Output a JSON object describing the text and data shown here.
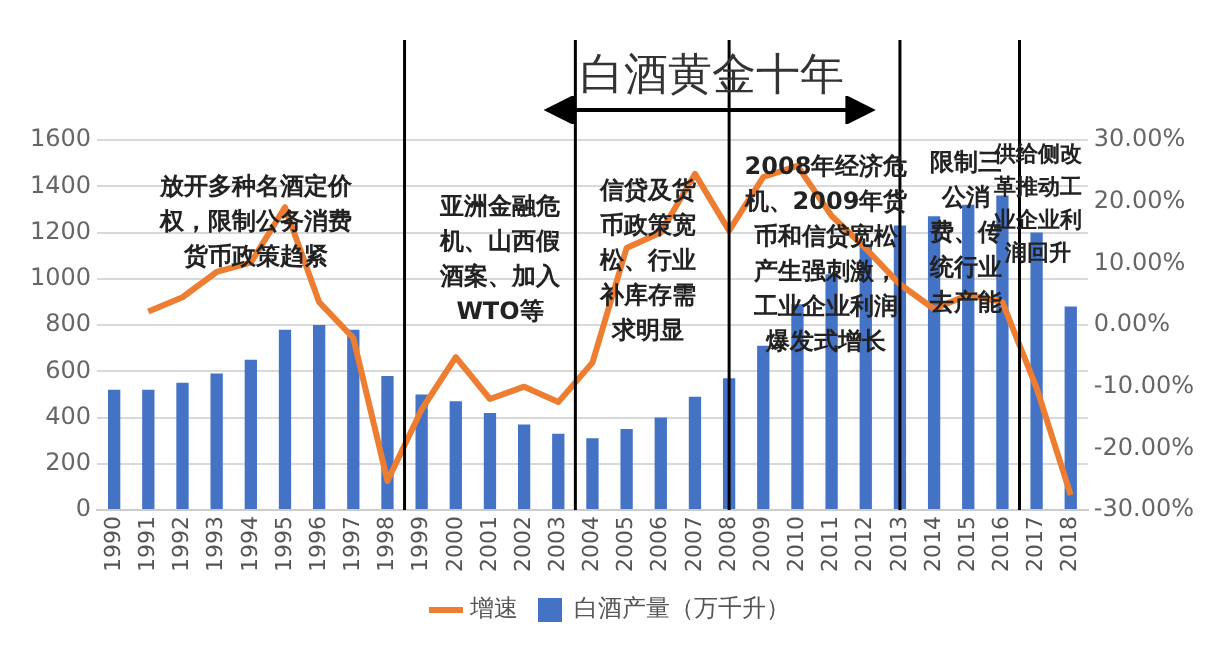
{
  "chart_data": {
    "type": "bar",
    "title": "白酒黄金十年",
    "x": [
      1990,
      1991,
      1992,
      1993,
      1994,
      1995,
      1996,
      1997,
      1998,
      1999,
      2000,
      2001,
      2002,
      2003,
      2004,
      2005,
      2006,
      2007,
      2008,
      2009,
      2010,
      2011,
      2012,
      2013,
      2014,
      2015,
      2016,
      2017,
      2018
    ],
    "xlim": [
      1989.5,
      2018.5
    ],
    "xticks": [
      1990,
      1991,
      1992,
      1993,
      1994,
      1995,
      1996,
      1997,
      1998,
      1999,
      2000,
      2001,
      2002,
      2003,
      2004,
      2005,
      2006,
      2007,
      2008,
      2009,
      2010,
      2011,
      2012,
      2013,
      2014,
      2015,
      2016,
      2017,
      2018
    ],
    "series": [
      {
        "name": "白酒产量（万千升）",
        "color": "#4472c4",
        "values": [
          520,
          520,
          550,
          590,
          650,
          780,
          800,
          780,
          580,
          500,
          470,
          420,
          370,
          330,
          310,
          350,
          400,
          490,
          570,
          710,
          890,
          1020,
          1150,
          1230,
          1270,
          1320,
          1360,
          1200,
          880
        ]
      },
      {
        "name": "增速",
        "type": "line",
        "axis": "y2",
        "color": "#ed7d31",
        "values": [
          null,
          2.2,
          4.5,
          8.6,
          10.1,
          19.1,
          3.7,
          -2.1,
          -25.3,
          -13.7,
          -5.2,
          -12,
          -10,
          -12.5,
          -6.1,
          12.5,
          15,
          24.5,
          15.3,
          24,
          25.8,
          17.7,
          12.4,
          6.6,
          2.6,
          4.9,
          3.7,
          -10.2,
          -27.6
        ]
      }
    ],
    "ylim": [
      0,
      1600
    ],
    "yticks": [
      0,
      200,
      400,
      600,
      800,
      1000,
      1200,
      1400,
      1600
    ],
    "y2lim": [
      -30,
      30
    ],
    "y2ticks": [
      {
        "value": -30,
        "label": "-30.00%"
      },
      {
        "value": -20,
        "label": "-20.00%"
      },
      {
        "value": -10,
        "label": "-10.00%"
      },
      {
        "value": 0,
        "label": "0.00%"
      },
      {
        "value": 10,
        "label": "10.00%"
      },
      {
        "value": 20,
        "label": "20.00%"
      },
      {
        "value": 30,
        "label": "30.00%"
      }
    ],
    "ref_lines": [
      {
        "axis": "x",
        "value": 1998.5,
        "color": "#000000"
      },
      {
        "axis": "x",
        "value": 2003.5,
        "color": "#000000"
      },
      {
        "axis": "x",
        "value": 2008,
        "color": "#000000"
      },
      {
        "axis": "x",
        "value": 2013,
        "color": "#000000"
      },
      {
        "axis": "x",
        "value": 2016.5,
        "color": "#000000"
      }
    ],
    "annotations": [
      "放开多种名酒定价权，限制公务消费货币政策趋紧",
      "亚洲金融危机、山西假酒案、加入WTO等",
      "信贷及货币政策宽松、行业补库存需求明显",
      "2008年经济危机、2009年货币和信贷宽松产生强刺激，工业企业利润爆发式增长",
      "限制三公消费、传统行业去产能",
      "供给侧改革推动工业企业利润回升"
    ],
    "grid": "y",
    "legend": "bottom",
    "marker": "none"
  }
}
